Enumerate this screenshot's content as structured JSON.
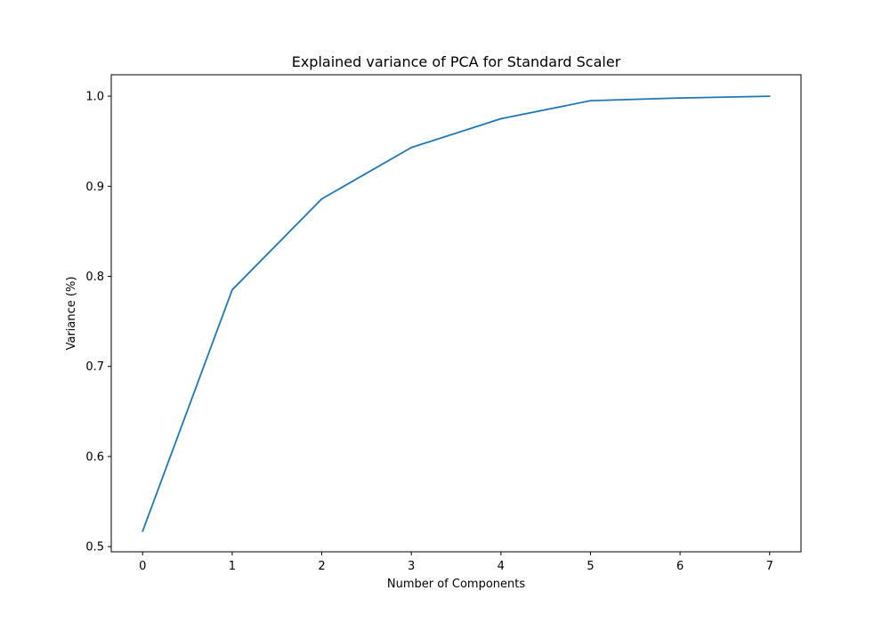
{
  "chart_data": {
    "type": "line",
    "title": "Explained variance of PCA for Standard Scaler",
    "xlabel": "Number of Components",
    "ylabel": "Variance (%)",
    "x": [
      0,
      1,
      2,
      3,
      4,
      5,
      6,
      7
    ],
    "series": [
      {
        "values": [
          0.517,
          0.785,
          0.886,
          0.943,
          0.975,
          0.995,
          0.998,
          1.0
        ],
        "color": "#1f77b4"
      }
    ],
    "xlim": [
      -0.35,
      7.35
    ],
    "ylim": [
      0.4942,
      1.0238
    ],
    "xticks": [
      0,
      1,
      2,
      3,
      4,
      5,
      6,
      7
    ],
    "xtick_labels": [
      "0",
      "1",
      "2",
      "3",
      "4",
      "5",
      "6",
      "7"
    ],
    "yticks": [
      0.5,
      0.6,
      0.7,
      0.8,
      0.9,
      1.0
    ],
    "ytick_labels": [
      "0.5",
      "0.6",
      "0.7",
      "0.8",
      "0.9",
      "1.0"
    ],
    "grid": false,
    "legend": "none"
  }
}
